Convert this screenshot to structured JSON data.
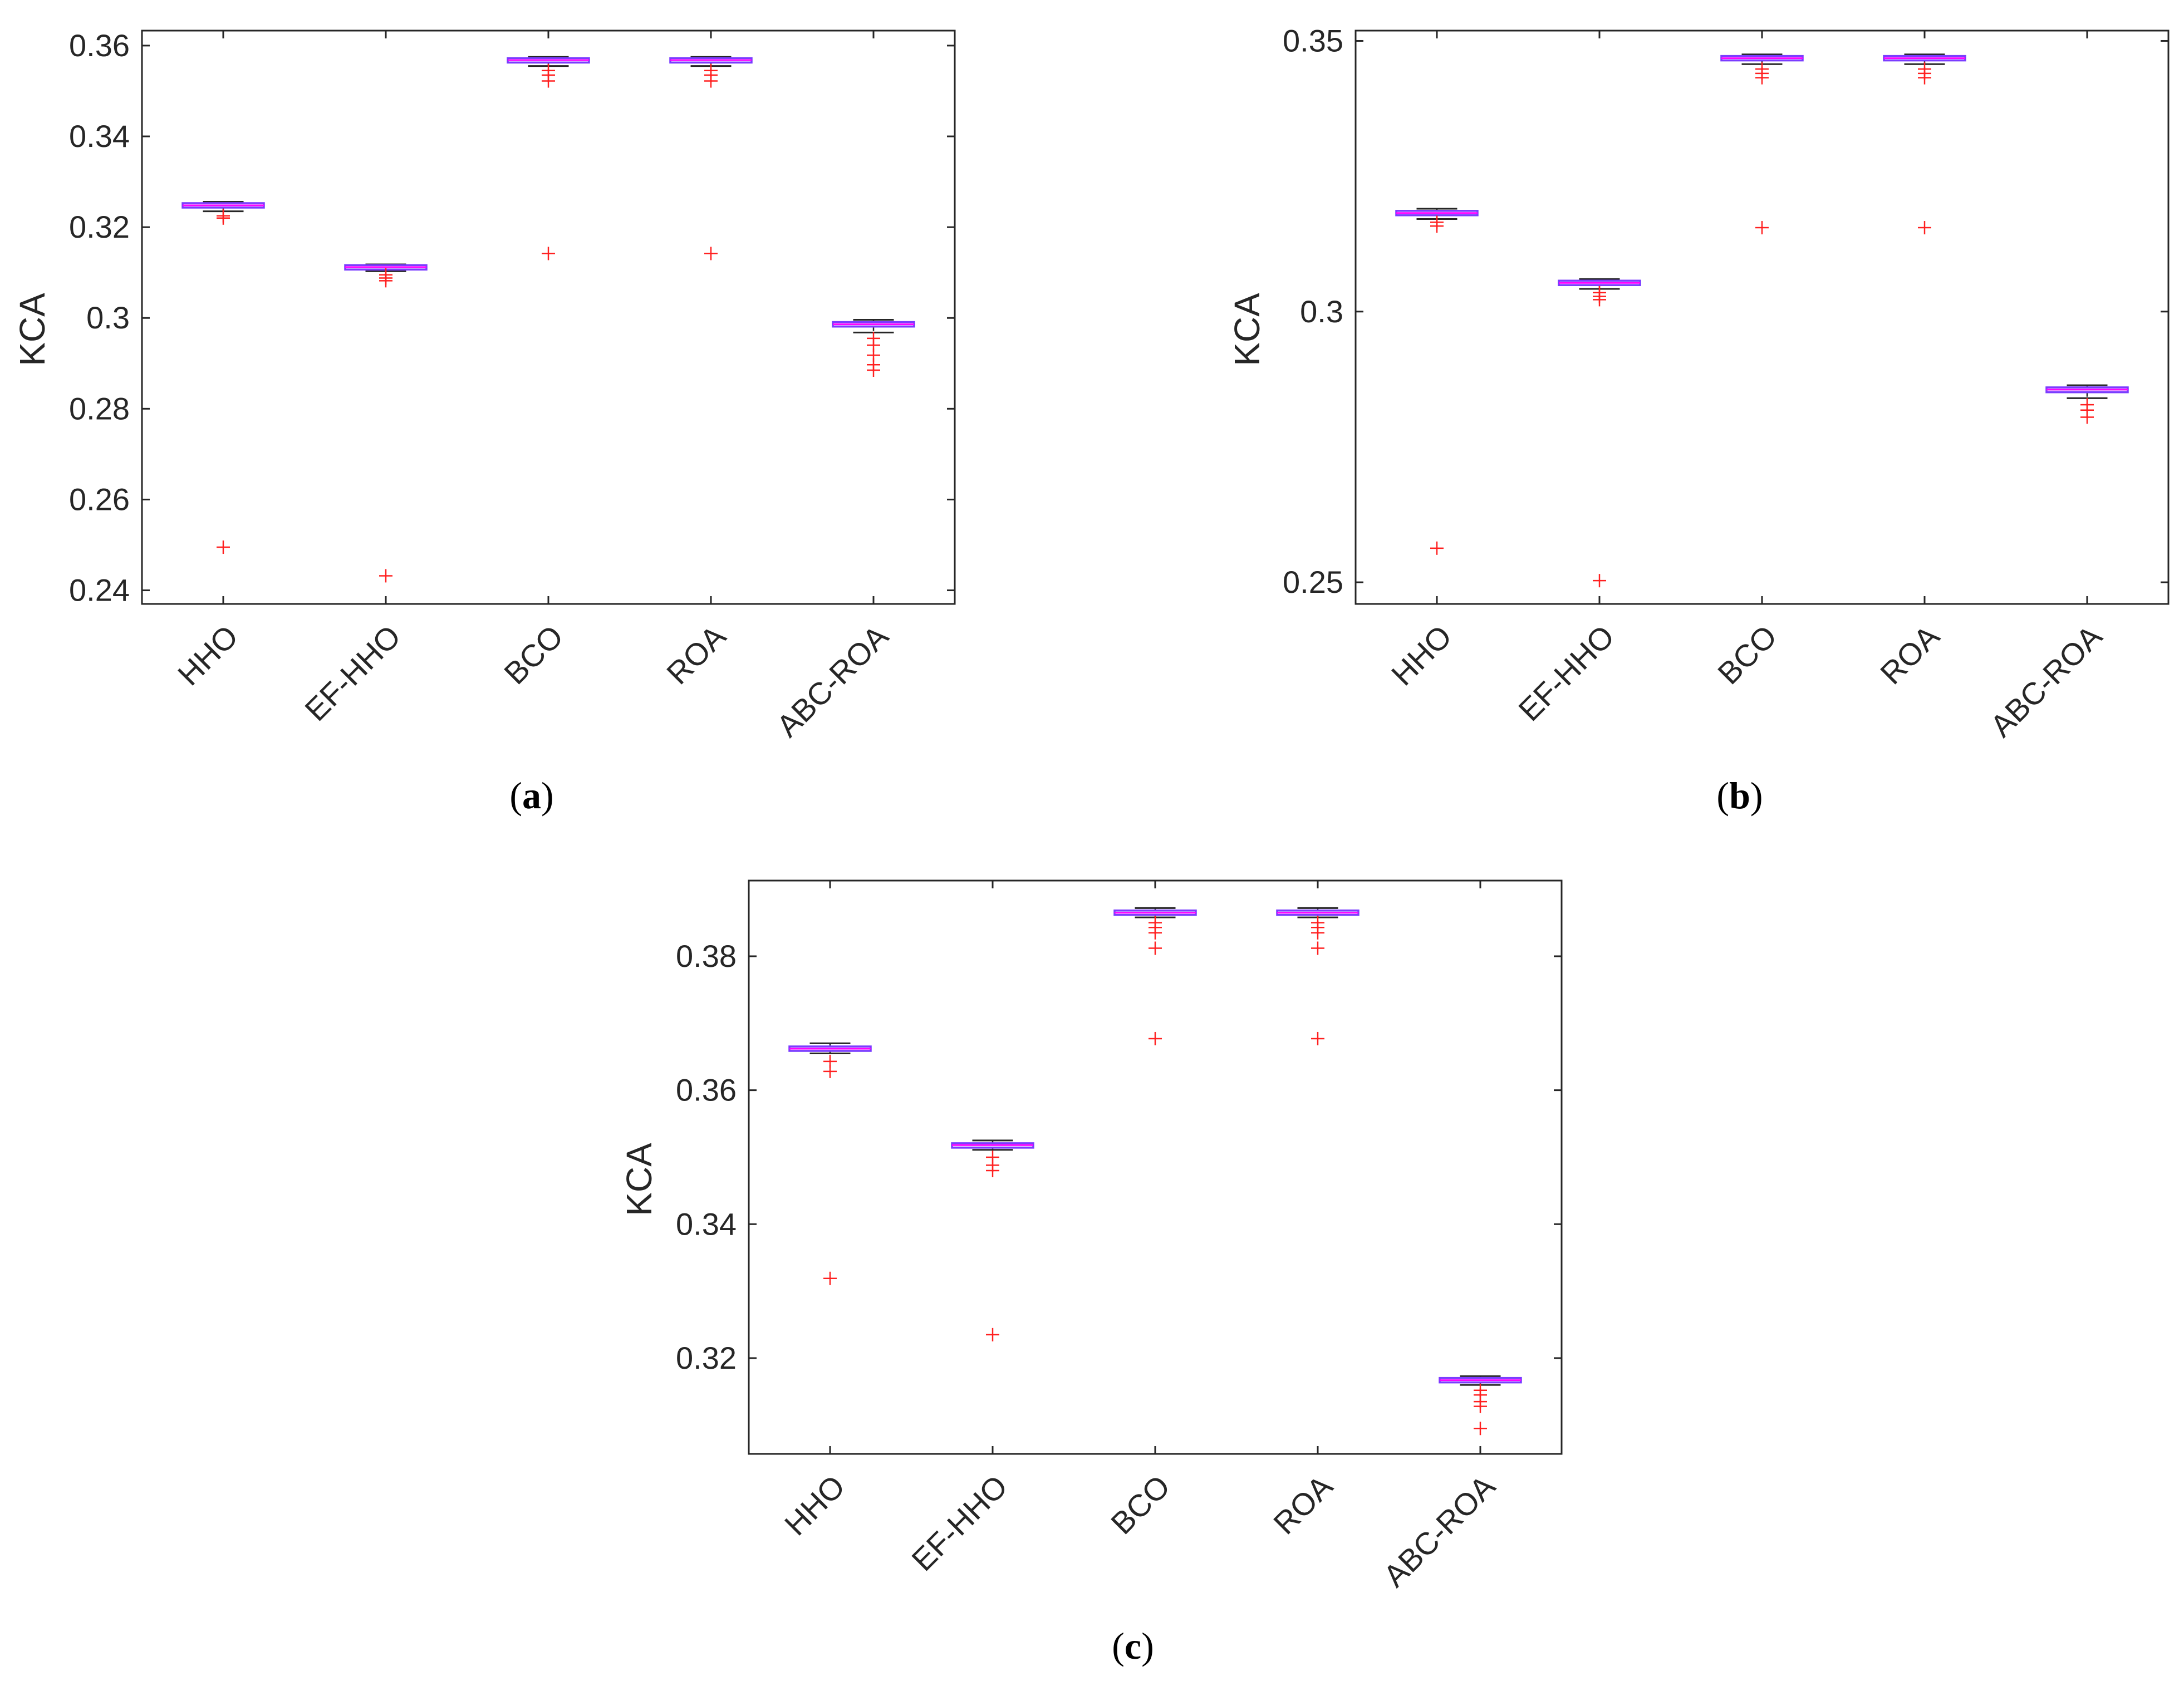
{
  "colors": {
    "axis": "#262626",
    "box": "#7a3cff",
    "box_fill": "#e9d9ff",
    "median": "#ff00ff",
    "outlier": "#ff2020",
    "whisker": "#262626"
  },
  "chart_data": [
    {
      "id": "a",
      "type": "boxplot",
      "panel_label": "a",
      "ylabel": "KCA",
      "xlabel": "",
      "categories": [
        "HHO",
        "EF-HHO",
        "BCO",
        "ROA",
        "ABC-ROA"
      ],
      "ylim": [
        0.237,
        0.3633
      ],
      "yticks": [
        0.24,
        0.26,
        0.28,
        0.3,
        0.32,
        0.34,
        0.36
      ],
      "ytick_labels": [
        "0.24",
        "0.26",
        "0.28",
        "0.3",
        "0.32",
        "0.34",
        "0.36"
      ],
      "boxes": [
        {
          "whisker_low": 0.3235,
          "q1": 0.3244,
          "median": 0.3248,
          "q3": 0.3252,
          "whisker_high": 0.3256,
          "outliers": [
            0.3225,
            0.322,
            0.2495
          ]
        },
        {
          "whisker_low": 0.3103,
          "q1": 0.3108,
          "median": 0.3112,
          "q3": 0.3115,
          "whisker_high": 0.3118,
          "outliers": [
            0.3095,
            0.3088,
            0.3082,
            0.2432
          ]
        },
        {
          "whisker_low": 0.3555,
          "q1": 0.3563,
          "median": 0.3568,
          "q3": 0.3572,
          "whisker_high": 0.3575,
          "outliers": [
            0.3545,
            0.3535,
            0.3522,
            0.3142
          ]
        },
        {
          "whisker_low": 0.3555,
          "q1": 0.3563,
          "median": 0.3568,
          "q3": 0.3572,
          "whisker_high": 0.3575,
          "outliers": [
            0.3545,
            0.3535,
            0.3522,
            0.3142
          ]
        },
        {
          "whisker_low": 0.2968,
          "q1": 0.2981,
          "median": 0.2986,
          "q3": 0.2991,
          "whisker_high": 0.2996,
          "outliers": [
            0.2955,
            0.294,
            0.2918,
            0.2897,
            0.2885
          ]
        }
      ]
    },
    {
      "id": "b",
      "type": "boxplot",
      "panel_label": "b",
      "ylabel": "KCA",
      "xlabel": "",
      "categories": [
        "HHO",
        "EF-HHO",
        "BCO",
        "ROA",
        "ABC-ROA"
      ],
      "ylim": [
        0.246,
        0.3519
      ],
      "yticks": [
        0.25,
        0.3,
        0.35
      ],
      "ytick_labels": [
        "0.25",
        "0.3",
        "0.35"
      ],
      "boxes": [
        {
          "whisker_low": 0.3171,
          "q1": 0.3178,
          "median": 0.3182,
          "q3": 0.3186,
          "whisker_high": 0.319,
          "outliers": [
            0.3165,
            0.3158,
            0.2563
          ]
        },
        {
          "whisker_low": 0.3042,
          "q1": 0.3049,
          "median": 0.3053,
          "q3": 0.3057,
          "whisker_high": 0.306,
          "outliers": [
            0.3035,
            0.3028,
            0.3022,
            0.2503
          ]
        },
        {
          "whisker_low": 0.3457,
          "q1": 0.3464,
          "median": 0.3468,
          "q3": 0.3472,
          "whisker_high": 0.3475,
          "outliers": [
            0.3448,
            0.344,
            0.3432,
            0.3155
          ]
        },
        {
          "whisker_low": 0.3457,
          "q1": 0.3464,
          "median": 0.3468,
          "q3": 0.3472,
          "whisker_high": 0.3475,
          "outliers": [
            0.3448,
            0.344,
            0.3432,
            0.3155
          ]
        },
        {
          "whisker_low": 0.284,
          "q1": 0.2851,
          "median": 0.2856,
          "q3": 0.286,
          "whisker_high": 0.2864,
          "outliers": [
            0.2828,
            0.2818,
            0.2805
          ]
        }
      ]
    },
    {
      "id": "c",
      "type": "boxplot",
      "panel_label": "c",
      "ylabel": "KCA",
      "xlabel": "",
      "categories": [
        "HHO",
        "EF-HHO",
        "BCO",
        "ROA",
        "ABC-ROA"
      ],
      "ylim": [
        0.3057,
        0.3913
      ],
      "yticks": [
        0.32,
        0.34,
        0.36,
        0.38
      ],
      "ytick_labels": [
        "0.32",
        "0.34",
        "0.36",
        "0.38"
      ],
      "boxes": [
        {
          "whisker_low": 0.3655,
          "q1": 0.3659,
          "median": 0.3662,
          "q3": 0.3665,
          "whisker_high": 0.367,
          "outliers": [
            0.3643,
            0.3628,
            0.3319
          ]
        },
        {
          "whisker_low": 0.3511,
          "q1": 0.3515,
          "median": 0.3518,
          "q3": 0.352,
          "whisker_high": 0.3525,
          "outliers": [
            0.35,
            0.3488,
            0.348,
            0.3235
          ]
        },
        {
          "whisker_low": 0.3858,
          "q1": 0.3862,
          "median": 0.3865,
          "q3": 0.3868,
          "whisker_high": 0.3872,
          "outliers": [
            0.385,
            0.3843,
            0.3835,
            0.3812,
            0.3677
          ]
        },
        {
          "whisker_low": 0.3858,
          "q1": 0.3862,
          "median": 0.3865,
          "q3": 0.3868,
          "whisker_high": 0.3872,
          "outliers": [
            0.385,
            0.3843,
            0.3835,
            0.3812,
            0.3677
          ]
        },
        {
          "whisker_low": 0.316,
          "q1": 0.3164,
          "median": 0.3167,
          "q3": 0.317,
          "whisker_high": 0.3173,
          "outliers": [
            0.3152,
            0.3145,
            0.3135,
            0.3128,
            0.3095
          ]
        }
      ]
    }
  ]
}
